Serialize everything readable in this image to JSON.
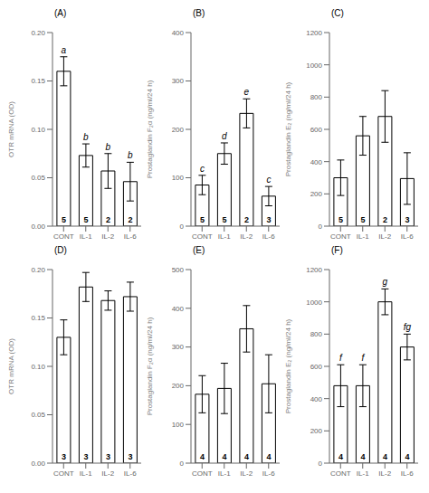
{
  "chart_data": [
    {
      "type": "bar",
      "title": "(A)",
      "ylabel": "OTR mRNA (OD)",
      "categories": [
        "CONT",
        "IL-1",
        "IL-2",
        "IL-6"
      ],
      "values": [
        0.16,
        0.073,
        0.057,
        0.046
      ],
      "errors": [
        0.015,
        0.012,
        0.018,
        0.02
      ],
      "ns": [
        5,
        5,
        2,
        2
      ],
      "sig_labels": [
        "a",
        "b",
        "b",
        "b"
      ],
      "color": "#ffffff",
      "ylim": [
        0,
        0.2
      ],
      "yticks": [
        {
          "value": 0,
          "label": "0.00"
        },
        0.05,
        {
          "value": 0.1,
          "label": "0.10"
        },
        0.15,
        {
          "value": 0.2,
          "label": "0.20"
        }
      ],
      "grid": false
    },
    {
      "type": "bar",
      "title": "(B)",
      "ylabel": "Prostaglandin F₂α (ng/ml/24 h)",
      "categories": [
        "CONT",
        "IL-1",
        "IL-2",
        "IL-6"
      ],
      "values": [
        85,
        150,
        233,
        62
      ],
      "errors": [
        20,
        22,
        30,
        20
      ],
      "ns": [
        5,
        5,
        2,
        3
      ],
      "sig_labels": [
        "c",
        "d",
        "e",
        "c"
      ],
      "color": "#ffffff",
      "ylim": [
        0,
        400
      ],
      "yticks": [
        0,
        100,
        200,
        300,
        400
      ],
      "grid": false
    },
    {
      "type": "bar",
      "title": "(C)",
      "ylabel": "Prostaglandin E₂ (ng/ml/24 h)",
      "categories": [
        "CONT",
        "IL-1",
        "IL-2",
        "IL-6"
      ],
      "values": [
        300,
        560,
        680,
        295
      ],
      "errors": [
        110,
        120,
        160,
        160
      ],
      "ns": [
        5,
        5,
        2,
        3
      ],
      "color": "#ffffff",
      "ylim": [
        0,
        1200
      ],
      "yticks": [
        0,
        200,
        400,
        600,
        800,
        1000,
        1200
      ],
      "grid": false
    },
    {
      "type": "bar",
      "title": "(D)",
      "ylabel": "OTR mRNA (OD)",
      "categories": [
        "CONT",
        "IL-1",
        "IL-2",
        "IL-6"
      ],
      "values": [
        0.13,
        0.182,
        0.168,
        0.172
      ],
      "errors": [
        0.018,
        0.015,
        0.01,
        0.015
      ],
      "ns": [
        3,
        3,
        3,
        3
      ],
      "color": "#ffffff",
      "ylim": [
        0,
        0.2
      ],
      "yticks": [
        {
          "value": 0,
          "label": "0.00"
        },
        0.05,
        {
          "value": 0.1,
          "label": "0.10"
        },
        0.15,
        {
          "value": 0.2,
          "label": "0.20"
        }
      ],
      "grid": false
    },
    {
      "type": "bar",
      "title": "(E)",
      "ylabel": "Prostaglandin F₂α (ng/ml/24 h)",
      "categories": [
        "CONT",
        "IL-1",
        "IL-2",
        "IL-6"
      ],
      "values": [
        178,
        193,
        347,
        205
      ],
      "errors": [
        48,
        65,
        60,
        75
      ],
      "ns": [
        4,
        4,
        4,
        4
      ],
      "color": "#ffffff",
      "ylim": [
        0,
        500
      ],
      "yticks": [
        0,
        100,
        200,
        300,
        400,
        500
      ],
      "grid": false
    },
    {
      "type": "bar",
      "title": "(F)",
      "ylabel": "Prostaglandin E₂ (ng/ml/24 h)",
      "categories": [
        "CONT",
        "IL-1",
        "IL-2",
        "IL-6"
      ],
      "values": [
        480,
        480,
        1000,
        720
      ],
      "errors": [
        130,
        130,
        80,
        80
      ],
      "ns": [
        4,
        4,
        4,
        4
      ],
      "sig_labels": [
        "f",
        "f",
        "g",
        "fg"
      ],
      "color": "#ffffff",
      "ylim": [
        0,
        1200
      ],
      "yticks": [
        0,
        200,
        400,
        600,
        800,
        1000,
        1200
      ],
      "grid": false
    }
  ]
}
